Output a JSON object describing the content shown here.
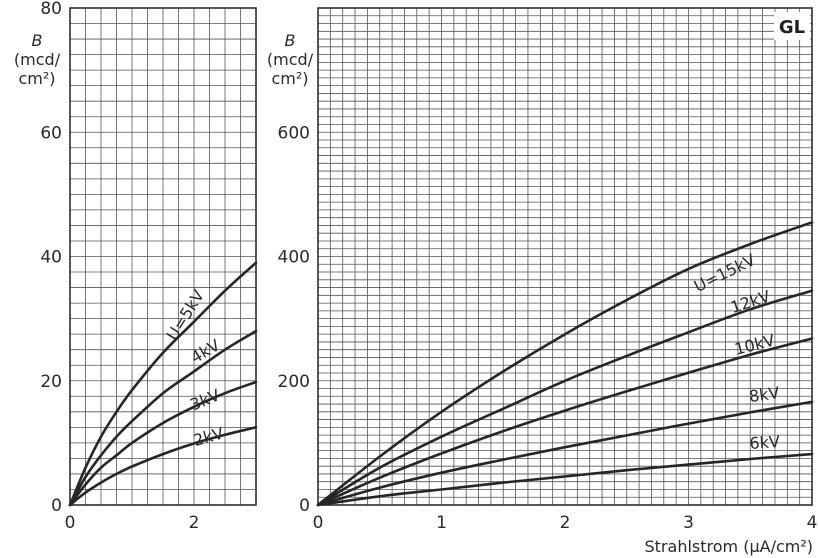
{
  "chart_data": [
    {
      "type": "line",
      "id": "left",
      "x_ticks": [
        0,
        2
      ],
      "xlim": [
        0,
        3
      ],
      "ylim": [
        0,
        80
      ],
      "y_ticks": [
        0,
        20,
        40,
        60,
        80
      ],
      "ylabel": [
        "B",
        "(mcd/",
        "cm²)"
      ],
      "series": [
        {
          "name": "U=5kV",
          "x": [
            0,
            0.25,
            0.5,
            0.75,
            1,
            1.5,
            2,
            2.5,
            3
          ],
          "y": [
            0,
            6,
            11,
            15,
            18.5,
            24.5,
            29.5,
            34.5,
            39
          ]
        },
        {
          "name": "4kV",
          "x": [
            0,
            0.25,
            0.5,
            0.75,
            1,
            1.5,
            2,
            2.5,
            3
          ],
          "y": [
            0,
            4.5,
            8,
            11,
            13.5,
            18,
            21.5,
            25,
            28
          ]
        },
        {
          "name": "3kV",
          "x": [
            0,
            0.25,
            0.5,
            0.75,
            1,
            1.5,
            2,
            2.5,
            3
          ],
          "y": [
            0,
            3.3,
            6,
            8,
            10,
            13.2,
            15.8,
            18,
            19.8
          ]
        },
        {
          "name": "2kV",
          "x": [
            0,
            0.25,
            0.5,
            0.75,
            1,
            1.5,
            2,
            2.5,
            3
          ],
          "y": [
            0,
            2,
            3.6,
            5,
            6.2,
            8.2,
            9.9,
            11.3,
            12.5
          ]
        }
      ]
    },
    {
      "type": "line",
      "id": "right",
      "badge": "GL",
      "x_ticks": [
        0,
        1,
        2,
        3,
        4
      ],
      "xlim": [
        0,
        4
      ],
      "ylim": [
        0,
        800
      ],
      "y_ticks": [
        0,
        200,
        400,
        600
      ],
      "ylabel": [
        "B",
        "(mcd/",
        "cm²)"
      ],
      "xlabel": "Strahlstrom (µA/cm²)",
      "series": [
        {
          "name": "U=15kV",
          "x": [
            0,
            0.5,
            1,
            1.5,
            2,
            2.5,
            3,
            3.5,
            4
          ],
          "y": [
            0,
            78,
            150,
            215,
            275,
            330,
            380,
            420,
            455
          ]
        },
        {
          "name": "12kV",
          "x": [
            0,
            0.5,
            1,
            1.5,
            2,
            2.5,
            3,
            3.5,
            4
          ],
          "y": [
            0,
            60,
            110,
            155,
            200,
            240,
            278,
            315,
            345
          ]
        },
        {
          "name": "10kV",
          "x": [
            0,
            0.5,
            1,
            1.5,
            2,
            2.5,
            3,
            3.5,
            4
          ],
          "y": [
            0,
            44,
            83,
            119,
            152,
            183,
            213,
            242,
            268
          ]
        },
        {
          "name": "8kV",
          "x": [
            0,
            0.5,
            1,
            1.5,
            2,
            2.5,
            3,
            3.5,
            4
          ],
          "y": [
            0,
            28,
            52,
            73,
            93,
            112,
            131,
            149,
            166
          ]
        },
        {
          "name": "6kV",
          "x": [
            0,
            0.5,
            1,
            1.5,
            2,
            2.5,
            3,
            3.5,
            4
          ],
          "y": [
            0,
            14,
            25,
            36,
            46,
            56,
            65,
            74,
            82
          ]
        }
      ]
    }
  ]
}
